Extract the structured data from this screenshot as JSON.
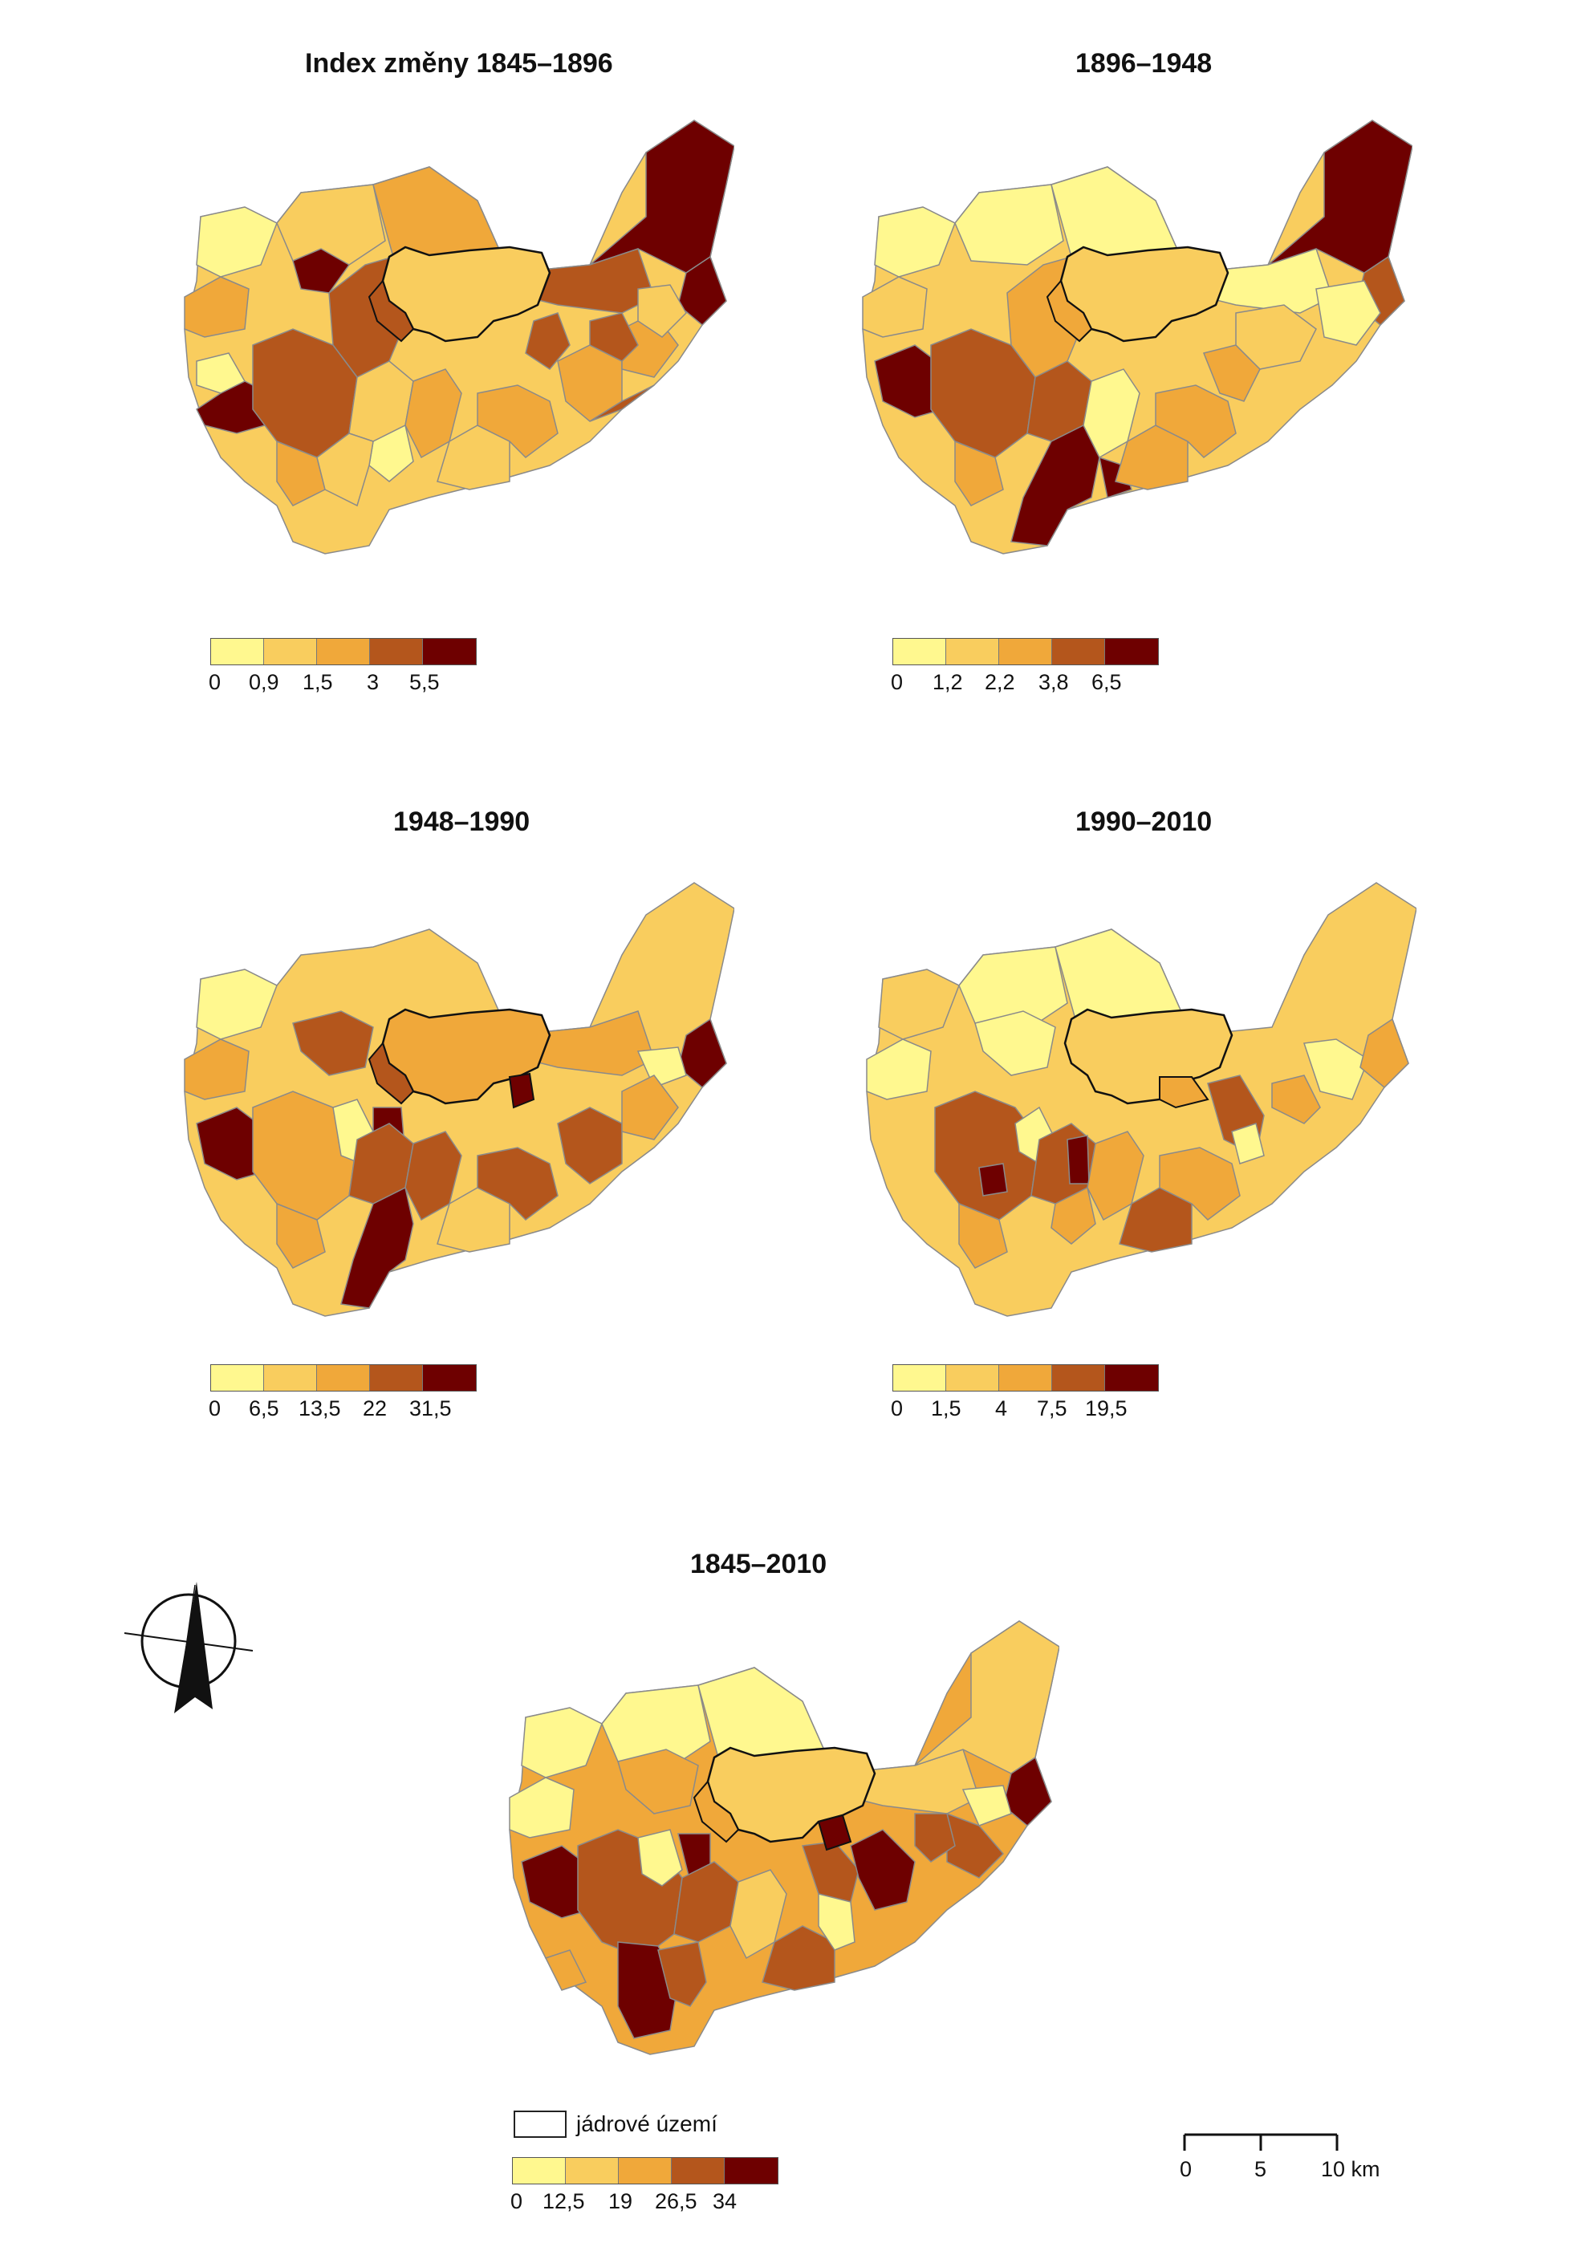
{
  "palette": [
    "#fff88f",
    "#f9cd5e",
    "#f0a83a",
    "#b4561c",
    "#6e0000"
  ],
  "panels": [
    {
      "title": "Index změny 1845–1896",
      "ticks": [
        "0",
        "0,9",
        "1,5",
        "3",
        "5,5"
      ]
    },
    {
      "title": "1896–1948",
      "ticks": [
        "0",
        "1,2",
        "2,2",
        "3,8",
        "6,5"
      ]
    },
    {
      "title": "1948–1990",
      "ticks": [
        "0",
        "6,5",
        "13,5",
        "22",
        "31,5"
      ]
    },
    {
      "title": "1990–2010",
      "ticks": [
        "0",
        "1,5",
        "4",
        "7,5",
        "19,5"
      ]
    },
    {
      "title": "1845–2010",
      "ticks": [
        "0",
        "12,5",
        "19",
        "26,5",
        "34"
      ]
    }
  ],
  "core_legend": {
    "label": "jádrové území"
  },
  "scale_bar": {
    "labels": [
      "0",
      "5",
      "10 km"
    ]
  },
  "north_arrow": {
    "icon": "north-arrow-icon"
  }
}
